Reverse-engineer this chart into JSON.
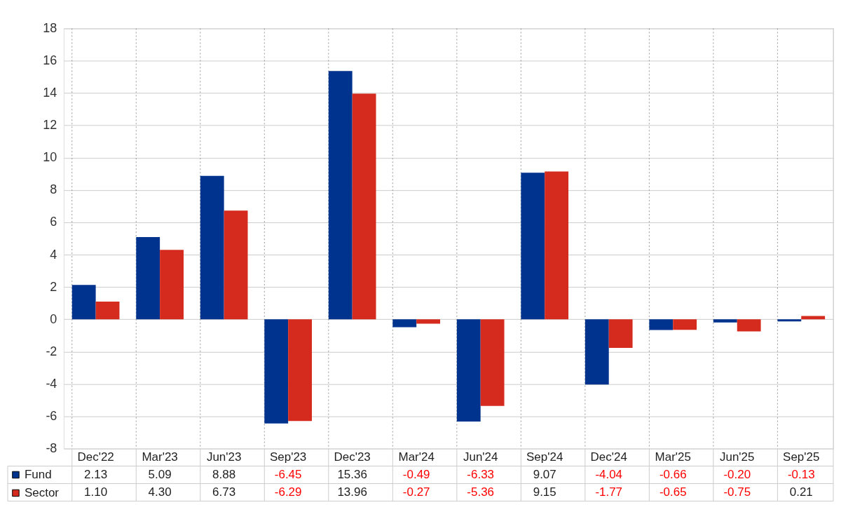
{
  "chart_data": {
    "type": "bar",
    "categories": [
      "Dec'22",
      "Mar'23",
      "Jun'23",
      "Sep'23",
      "Dec'23",
      "Mar'24",
      "Jun'24",
      "Sep'24",
      "Dec'24",
      "Mar'25",
      "Jun'25",
      "Sep'25"
    ],
    "series": [
      {
        "name": "Fund",
        "color": "#00338d",
        "values": [
          2.13,
          5.09,
          8.88,
          -6.45,
          15.36,
          -0.49,
          -6.33,
          9.07,
          -4.04,
          -0.66,
          -0.2,
          -0.13
        ],
        "value_labels": [
          "2.13",
          "5.09",
          "8.88",
          "-6.45",
          "15.36",
          "-0.49",
          "-6.33",
          "9.07",
          "-4.04",
          "-0.66",
          "-0.20",
          "-0.13"
        ]
      },
      {
        "name": "Sector",
        "color": "#d52b1e",
        "values": [
          1.1,
          4.3,
          6.73,
          -6.29,
          13.96,
          -0.27,
          -5.36,
          9.15,
          -1.77,
          -0.65,
          -0.75,
          0.21
        ],
        "value_labels": [
          "1.10",
          "4.30",
          "6.73",
          "-6.29",
          "13.96",
          "-0.27",
          "-5.36",
          "9.15",
          "-1.77",
          "-0.65",
          "-0.75",
          "0.21"
        ]
      }
    ],
    "ylim": [
      -8,
      18
    ],
    "yticks": [
      -8,
      -6,
      -4,
      -2,
      0,
      2,
      4,
      6,
      8,
      10,
      12,
      14,
      16,
      18
    ],
    "grid": true,
    "legend": "bottom left"
  }
}
